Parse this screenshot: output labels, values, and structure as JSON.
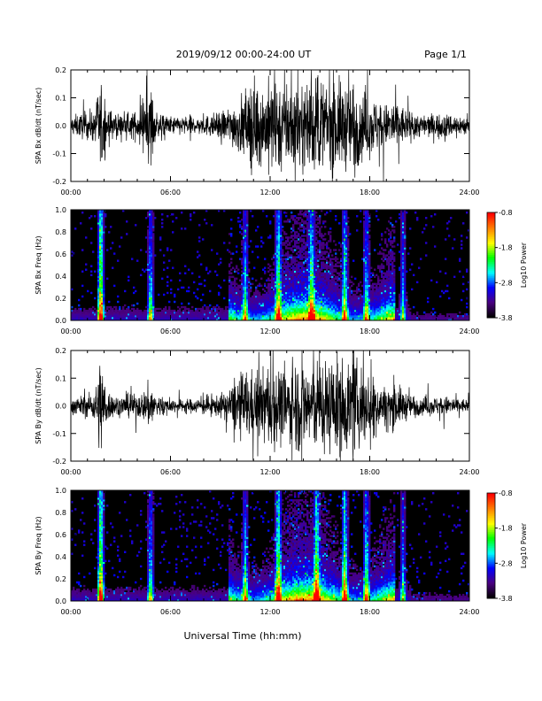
{
  "header": {
    "date_range": "2019/09/12  00:00-24:00 UT",
    "page": "Page 1/1"
  },
  "xaxis_label": "Universal Time (hh:mm)",
  "colors": {
    "trace": "#000000",
    "colormap": [
      "#000000",
      "#4b0082",
      "#0000ff",
      "#00ffff",
      "#00ff00",
      "#ffff00",
      "#ff8000",
      "#ff0000"
    ]
  },
  "chart_data": [
    {
      "type": "line",
      "panel": "bx-timeseries",
      "ylabel": "SPA Bx dB/dt (nT/sec)",
      "ylim": [
        -0.2,
        0.2
      ],
      "yticks": [
        "-0.2",
        "-0.1",
        "0.0",
        "0.1",
        "0.2"
      ],
      "xlim": [
        0,
        24
      ],
      "xticks": [
        "00:00",
        "06:00",
        "12:00",
        "18:00",
        "24:00"
      ],
      "series": [
        {
          "x": [
            0,
            0.5,
            1,
            1.5,
            1.7,
            1.9,
            2.2,
            2.5,
            3,
            3.5,
            4,
            4.5,
            4.8,
            5,
            5.5,
            6,
            6.5,
            7,
            7.5,
            8,
            8.5,
            9,
            9.5,
            10,
            10.5,
            11,
            11.5,
            12,
            12.5,
            13,
            13.5,
            14,
            14.5,
            15,
            15.5,
            16,
            16.5,
            17,
            17.5,
            18,
            18.5,
            19,
            19.5,
            20,
            20.5,
            21,
            21.5,
            22,
            22.5,
            23,
            23.5,
            24
          ],
          "envelope": [
            0.04,
            0.05,
            0.06,
            0.07,
            0.2,
            0.2,
            0.08,
            0.06,
            0.05,
            0.05,
            0.06,
            0.08,
            0.2,
            0.07,
            0.05,
            0.04,
            0.04,
            0.04,
            0.04,
            0.04,
            0.05,
            0.06,
            0.08,
            0.11,
            0.14,
            0.2,
            0.16,
            0.2,
            0.2,
            0.2,
            0.2,
            0.17,
            0.2,
            0.2,
            0.2,
            0.2,
            0.18,
            0.2,
            0.15,
            0.13,
            0.11,
            0.09,
            0.12,
            0.08,
            0.06,
            0.05,
            0.05,
            0.05,
            0.05,
            0.05,
            0.04,
            0.04
          ]
        }
      ]
    },
    {
      "type": "heatmap",
      "panel": "bx-spectrogram",
      "ylabel": "SPA Bx Freq (Hz)",
      "ylim": [
        0,
        1.0
      ],
      "yticks": [
        "0.0",
        "0.2",
        "0.4",
        "0.6",
        "0.8",
        "1.0"
      ],
      "xlim": [
        0,
        24
      ],
      "xticks": [
        "00:00",
        "06:00",
        "12:00",
        "18:00",
        "24:00"
      ],
      "colorbar": {
        "label": "Log10 Power",
        "range": [
          -3.8,
          -0.8
        ],
        "ticks": [
          "-0.8",
          "-1.8",
          "-2.8",
          "-3.8"
        ]
      },
      "activity_bursts": [
        {
          "hour": 1.8,
          "level": 1.0
        },
        {
          "hour": 4.8,
          "level": 0.6
        },
        {
          "hour": 10.5,
          "level": 0.5
        },
        {
          "hour": 12.5,
          "level": 0.7
        },
        {
          "hour": 14.5,
          "level": 0.55
        },
        {
          "hour": 16.5,
          "level": 0.6
        },
        {
          "hour": 17.8,
          "level": 0.5
        },
        {
          "hour": 20.0,
          "level": 0.45
        }
      ]
    },
    {
      "type": "line",
      "panel": "by-timeseries",
      "ylabel": "SPA By dB/dt (nT/sec)",
      "ylim": [
        -0.2,
        0.2
      ],
      "yticks": [
        "-0.2",
        "-0.1",
        "0.0",
        "0.1",
        "0.2"
      ],
      "xlim": [
        0,
        24
      ],
      "xticks": [
        "00:00",
        "06:00",
        "12:00",
        "18:00",
        "24:00"
      ],
      "series": [
        {
          "x": [
            0,
            0.5,
            1,
            1.5,
            1.7,
            1.9,
            2.2,
            2.5,
            3,
            3.5,
            4,
            4.5,
            4.8,
            5,
            5.5,
            6,
            6.5,
            7,
            7.5,
            8,
            8.5,
            9,
            9.5,
            10,
            10.5,
            11,
            11.5,
            12,
            12.5,
            13,
            13.5,
            14,
            14.5,
            15,
            15.5,
            16,
            16.5,
            17,
            17.5,
            18,
            18.5,
            19,
            19.5,
            20,
            20.5,
            21,
            21.5,
            22,
            22.5,
            23,
            23.5,
            24
          ],
          "envelope": [
            0.03,
            0.04,
            0.05,
            0.07,
            0.2,
            0.2,
            0.07,
            0.05,
            0.04,
            0.05,
            0.05,
            0.07,
            0.12,
            0.06,
            0.04,
            0.03,
            0.03,
            0.03,
            0.03,
            0.04,
            0.04,
            0.05,
            0.07,
            0.12,
            0.16,
            0.14,
            0.15,
            0.2,
            0.17,
            0.15,
            0.2,
            0.2,
            0.2,
            0.2,
            0.2,
            0.2,
            0.2,
            0.2,
            0.17,
            0.14,
            0.1,
            0.08,
            0.1,
            0.07,
            0.05,
            0.04,
            0.04,
            0.04,
            0.04,
            0.04,
            0.03,
            0.03
          ]
        }
      ]
    },
    {
      "type": "heatmap",
      "panel": "by-spectrogram",
      "ylabel": "SPA By Freq (Hz)",
      "ylim": [
        0,
        1.0
      ],
      "yticks": [
        "0.0",
        "0.2",
        "0.4",
        "0.6",
        "0.8",
        "1.0"
      ],
      "xlim": [
        0,
        24
      ],
      "xticks": [
        "00:00",
        "06:00",
        "12:00",
        "18:00",
        "24:00"
      ],
      "colorbar": {
        "label": "Log10 Power",
        "range": [
          -3.8,
          -0.8
        ],
        "ticks": [
          "-0.8",
          "-1.8",
          "-2.8",
          "-3.8"
        ]
      },
      "activity_bursts": [
        {
          "hour": 1.8,
          "level": 1.0
        },
        {
          "hour": 4.8,
          "level": 0.6
        },
        {
          "hour": 10.5,
          "level": 0.5
        },
        {
          "hour": 12.5,
          "level": 0.75
        },
        {
          "hour": 14.8,
          "level": 0.65
        },
        {
          "hour": 16.5,
          "level": 0.75
        },
        {
          "hour": 17.8,
          "level": 0.6
        },
        {
          "hour": 20.0,
          "level": 0.45
        }
      ]
    }
  ]
}
